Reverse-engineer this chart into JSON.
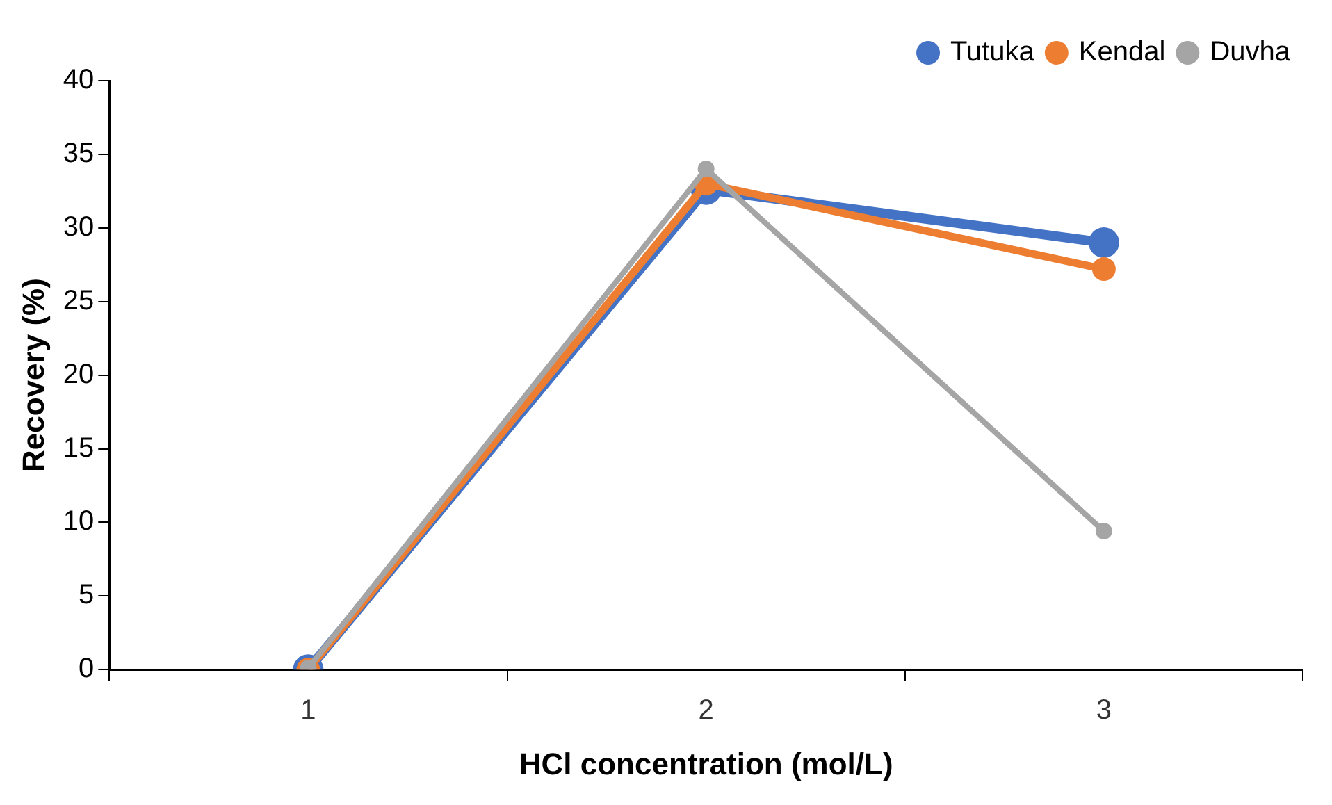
{
  "chart_data": {
    "type": "line",
    "xlabel": "HCl concentration (mol/L)",
    "ylabel": "Recovery (%)",
    "categories": [
      "1",
      "2",
      "3"
    ],
    "series": [
      {
        "name": "Tutuka",
        "color": "#4472c4",
        "values": [
          0,
          32.6,
          29
        ]
      },
      {
        "name": "Kendal",
        "color": "#ed7d31",
        "values": [
          0,
          33,
          27.2
        ]
      },
      {
        "name": "Duvha",
        "color": "#a5a5a5",
        "values": [
          0.1,
          34,
          9.4
        ]
      }
    ],
    "ylim": [
      0,
      40
    ],
    "yticks": [
      0,
      5,
      10,
      15,
      20,
      25,
      30,
      35,
      40
    ],
    "legend": "top right",
    "marker": "circle",
    "line_style": "solid"
  }
}
